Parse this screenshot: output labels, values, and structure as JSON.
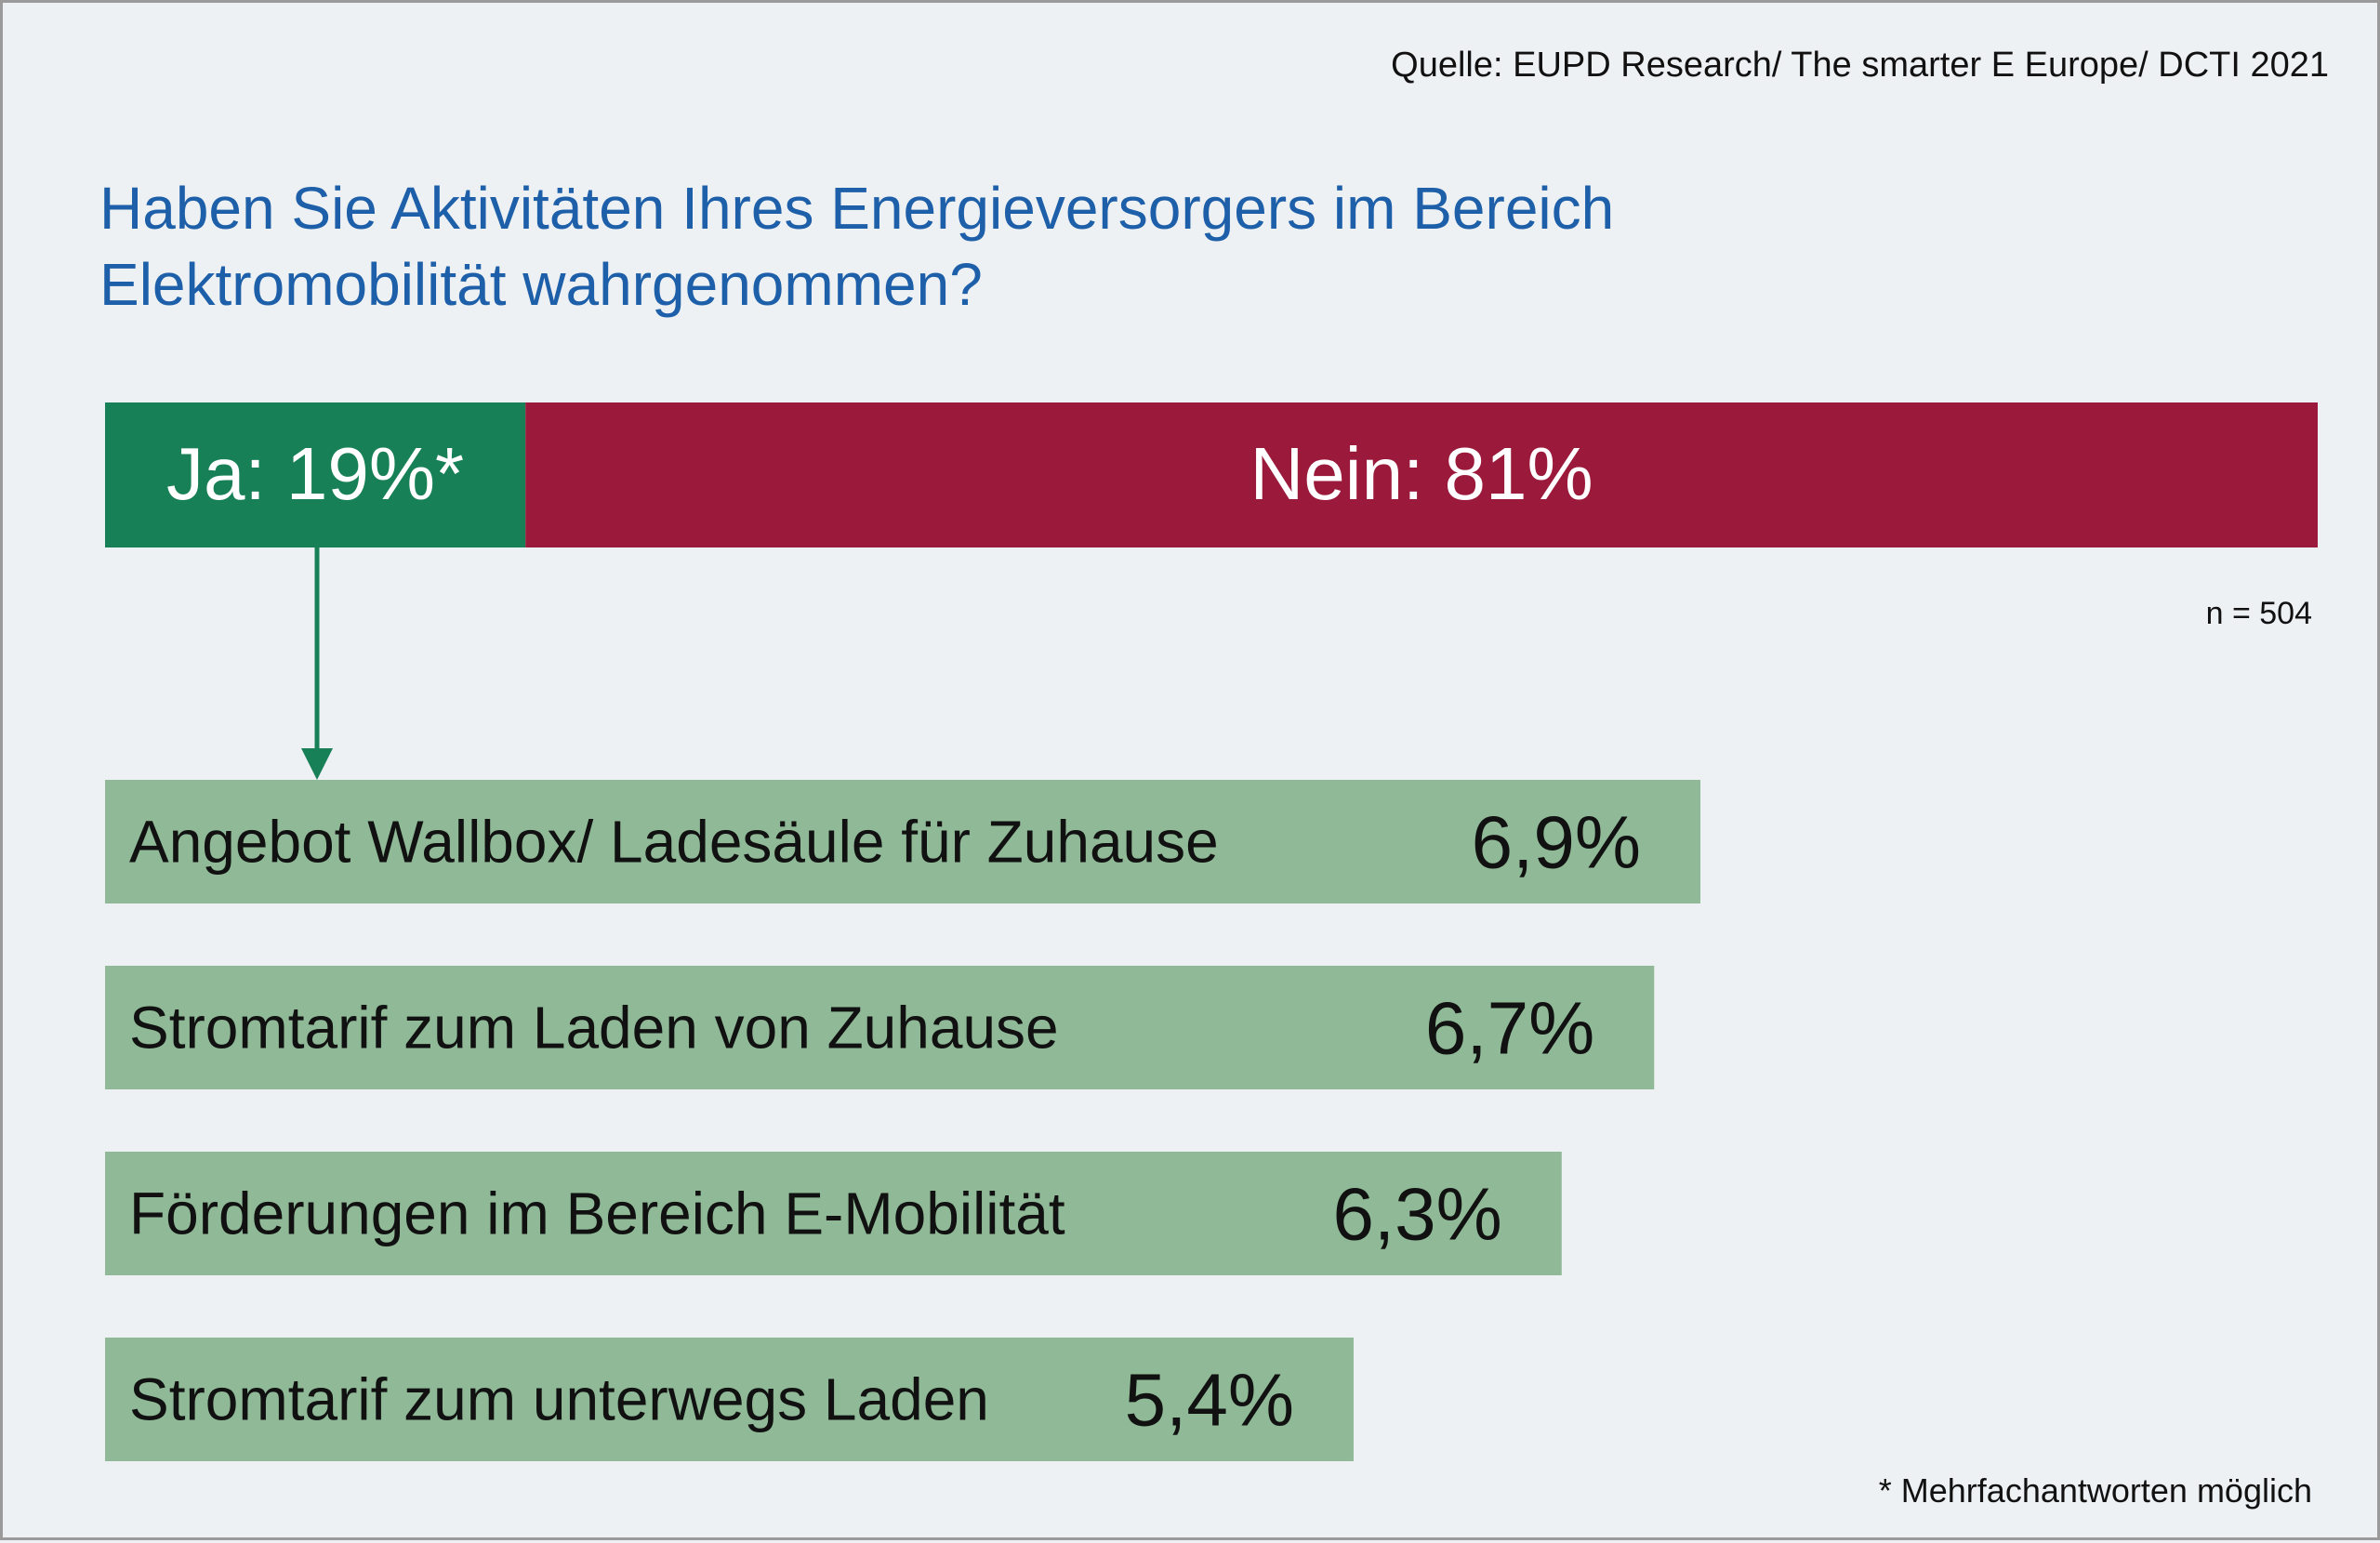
{
  "source": "Quelle: EUPD Research/ The smarter E Europe/ DCTI 2021",
  "question": {
    "line1": "Haben Sie Aktivitäten Ihres Energieversorgers im Bereich",
    "line2": "Elektromobilität wahrgenommen?"
  },
  "sample_note": "n = 504",
  "footnote": "* Mehrfachantworten möglich",
  "colors": {
    "yes": "#178056",
    "no": "#9b1a3b",
    "detail_bar": "#8fb997",
    "title": "#1d5fa8",
    "arrow": "#178056"
  },
  "chart_data": [
    {
      "type": "bar",
      "orientation": "horizontal-stacked",
      "categories": [
        "Ja",
        "Nein"
      ],
      "values": [
        19,
        81
      ],
      "labels": [
        "Ja: 19%*",
        "Nein: 81%"
      ],
      "unit": "%"
    },
    {
      "type": "bar",
      "orientation": "horizontal",
      "categories": [
        "Angebot Wallbox/ Ladesäule für Zuhause",
        "Stromtarif zum Laden von Zuhause",
        "Förderungen im Bereich E-Mobilität",
        "Stromtarif zum unterwegs Laden"
      ],
      "values": [
        6.9,
        6.7,
        6.3,
        5.4
      ],
      "value_labels": [
        "6,9%",
        "6,7%",
        "6,3%",
        "5,4%"
      ],
      "unit": "%"
    }
  ]
}
